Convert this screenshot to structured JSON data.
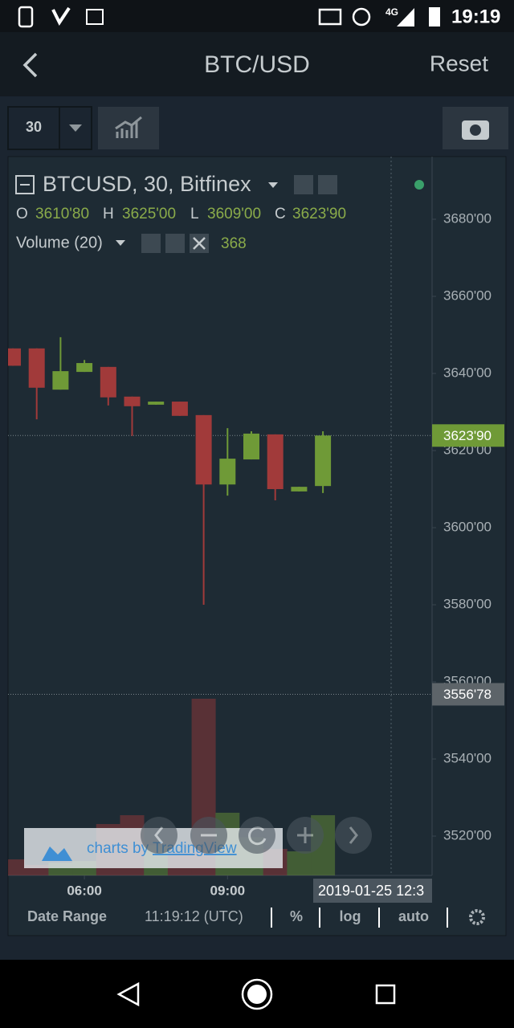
{
  "status_bar": {
    "network": "4G",
    "time": "19:19"
  },
  "header": {
    "title": "BTC/USD",
    "reset": "Reset"
  },
  "toolbar": {
    "interval": "30"
  },
  "legend": {
    "symbol": "BTCUSD, 30, Bitfinex",
    "ohlc": [
      {
        "key": "O",
        "value": "3610'80"
      },
      {
        "key": "H",
        "value": "3625'00"
      },
      {
        "key": "L",
        "value": "3609'00"
      },
      {
        "key": "C",
        "value": "3623'90"
      }
    ],
    "volume_label": "Volume (20)",
    "volume_value": "368"
  },
  "chart_data": {
    "type": "candlestick",
    "categories": [
      null,
      null,
      null,
      "06:00",
      null,
      null,
      null,
      null,
      null,
      "09:00",
      null,
      null,
      null,
      null
    ],
    "open": [
      3646.5,
      3646.5,
      3635.8,
      3640.4,
      3641.7,
      3634,
      3631.9,
      3632.7,
      3629.2,
      3611.2,
      3617.7,
      3624.2,
      3609.4,
      3610.8
    ],
    "high": [
      3646.5,
      3646.5,
      3649.4,
      3643.5,
      3641.7,
      3634,
      3632.7,
      3632.7,
      3629.2,
      3625.8,
      3625,
      3624.2,
      3610.6,
      3625
    ],
    "low": [
      3642,
      3628.1,
      3635.8,
      3640.4,
      3631.7,
      3623.8,
      3631.9,
      3629,
      3580,
      3608.3,
      3617.7,
      3607.1,
      3609.4,
      3609
    ],
    "close": [
      3642,
      3636.3,
      3640.6,
      3642.7,
      3633.8,
      3631.5,
      3632.7,
      3629,
      3611.2,
      3617.9,
      3624.4,
      3610,
      3610.6,
      3623.9
    ],
    "volume": [
      98,
      64,
      78,
      88,
      314,
      368,
      186,
      137,
      1080,
      383,
      235,
      162,
      147,
      368
    ],
    "up_color": "#6f9a37",
    "down_color": "#a13a3a",
    "ylim": [
      3509.8,
      3696.25
    ],
    "yticks": [
      {
        "value": 3520,
        "label": "3520'00"
      },
      {
        "value": 3540,
        "label": "3540'00"
      },
      {
        "value": 3560,
        "label": "3560'00"
      },
      {
        "value": 3580,
        "label": "3580'00"
      },
      {
        "value": 3600,
        "label": "3600'00"
      },
      {
        "value": 3620,
        "label": "3620'00"
      },
      {
        "value": 3640,
        "label": "3640'00"
      },
      {
        "value": 3660,
        "label": "3660'00"
      },
      {
        "value": 3680,
        "label": "3680'00"
      }
    ],
    "price_lines": [
      {
        "value": 3623.9,
        "label": "3623'90",
        "color": "#6f9a37"
      },
      {
        "value": 3556.78,
        "label": "3556'78",
        "color": "#5d6469"
      }
    ]
  },
  "date_label": "2019-01-25 12:3",
  "footer": {
    "date_range": "Date Range",
    "time": "11:19:12 (UTC)",
    "percent": "%",
    "log": "log",
    "auto": "auto"
  },
  "watermark": {
    "prefix": "charts by ",
    "brand": "TradingView"
  }
}
